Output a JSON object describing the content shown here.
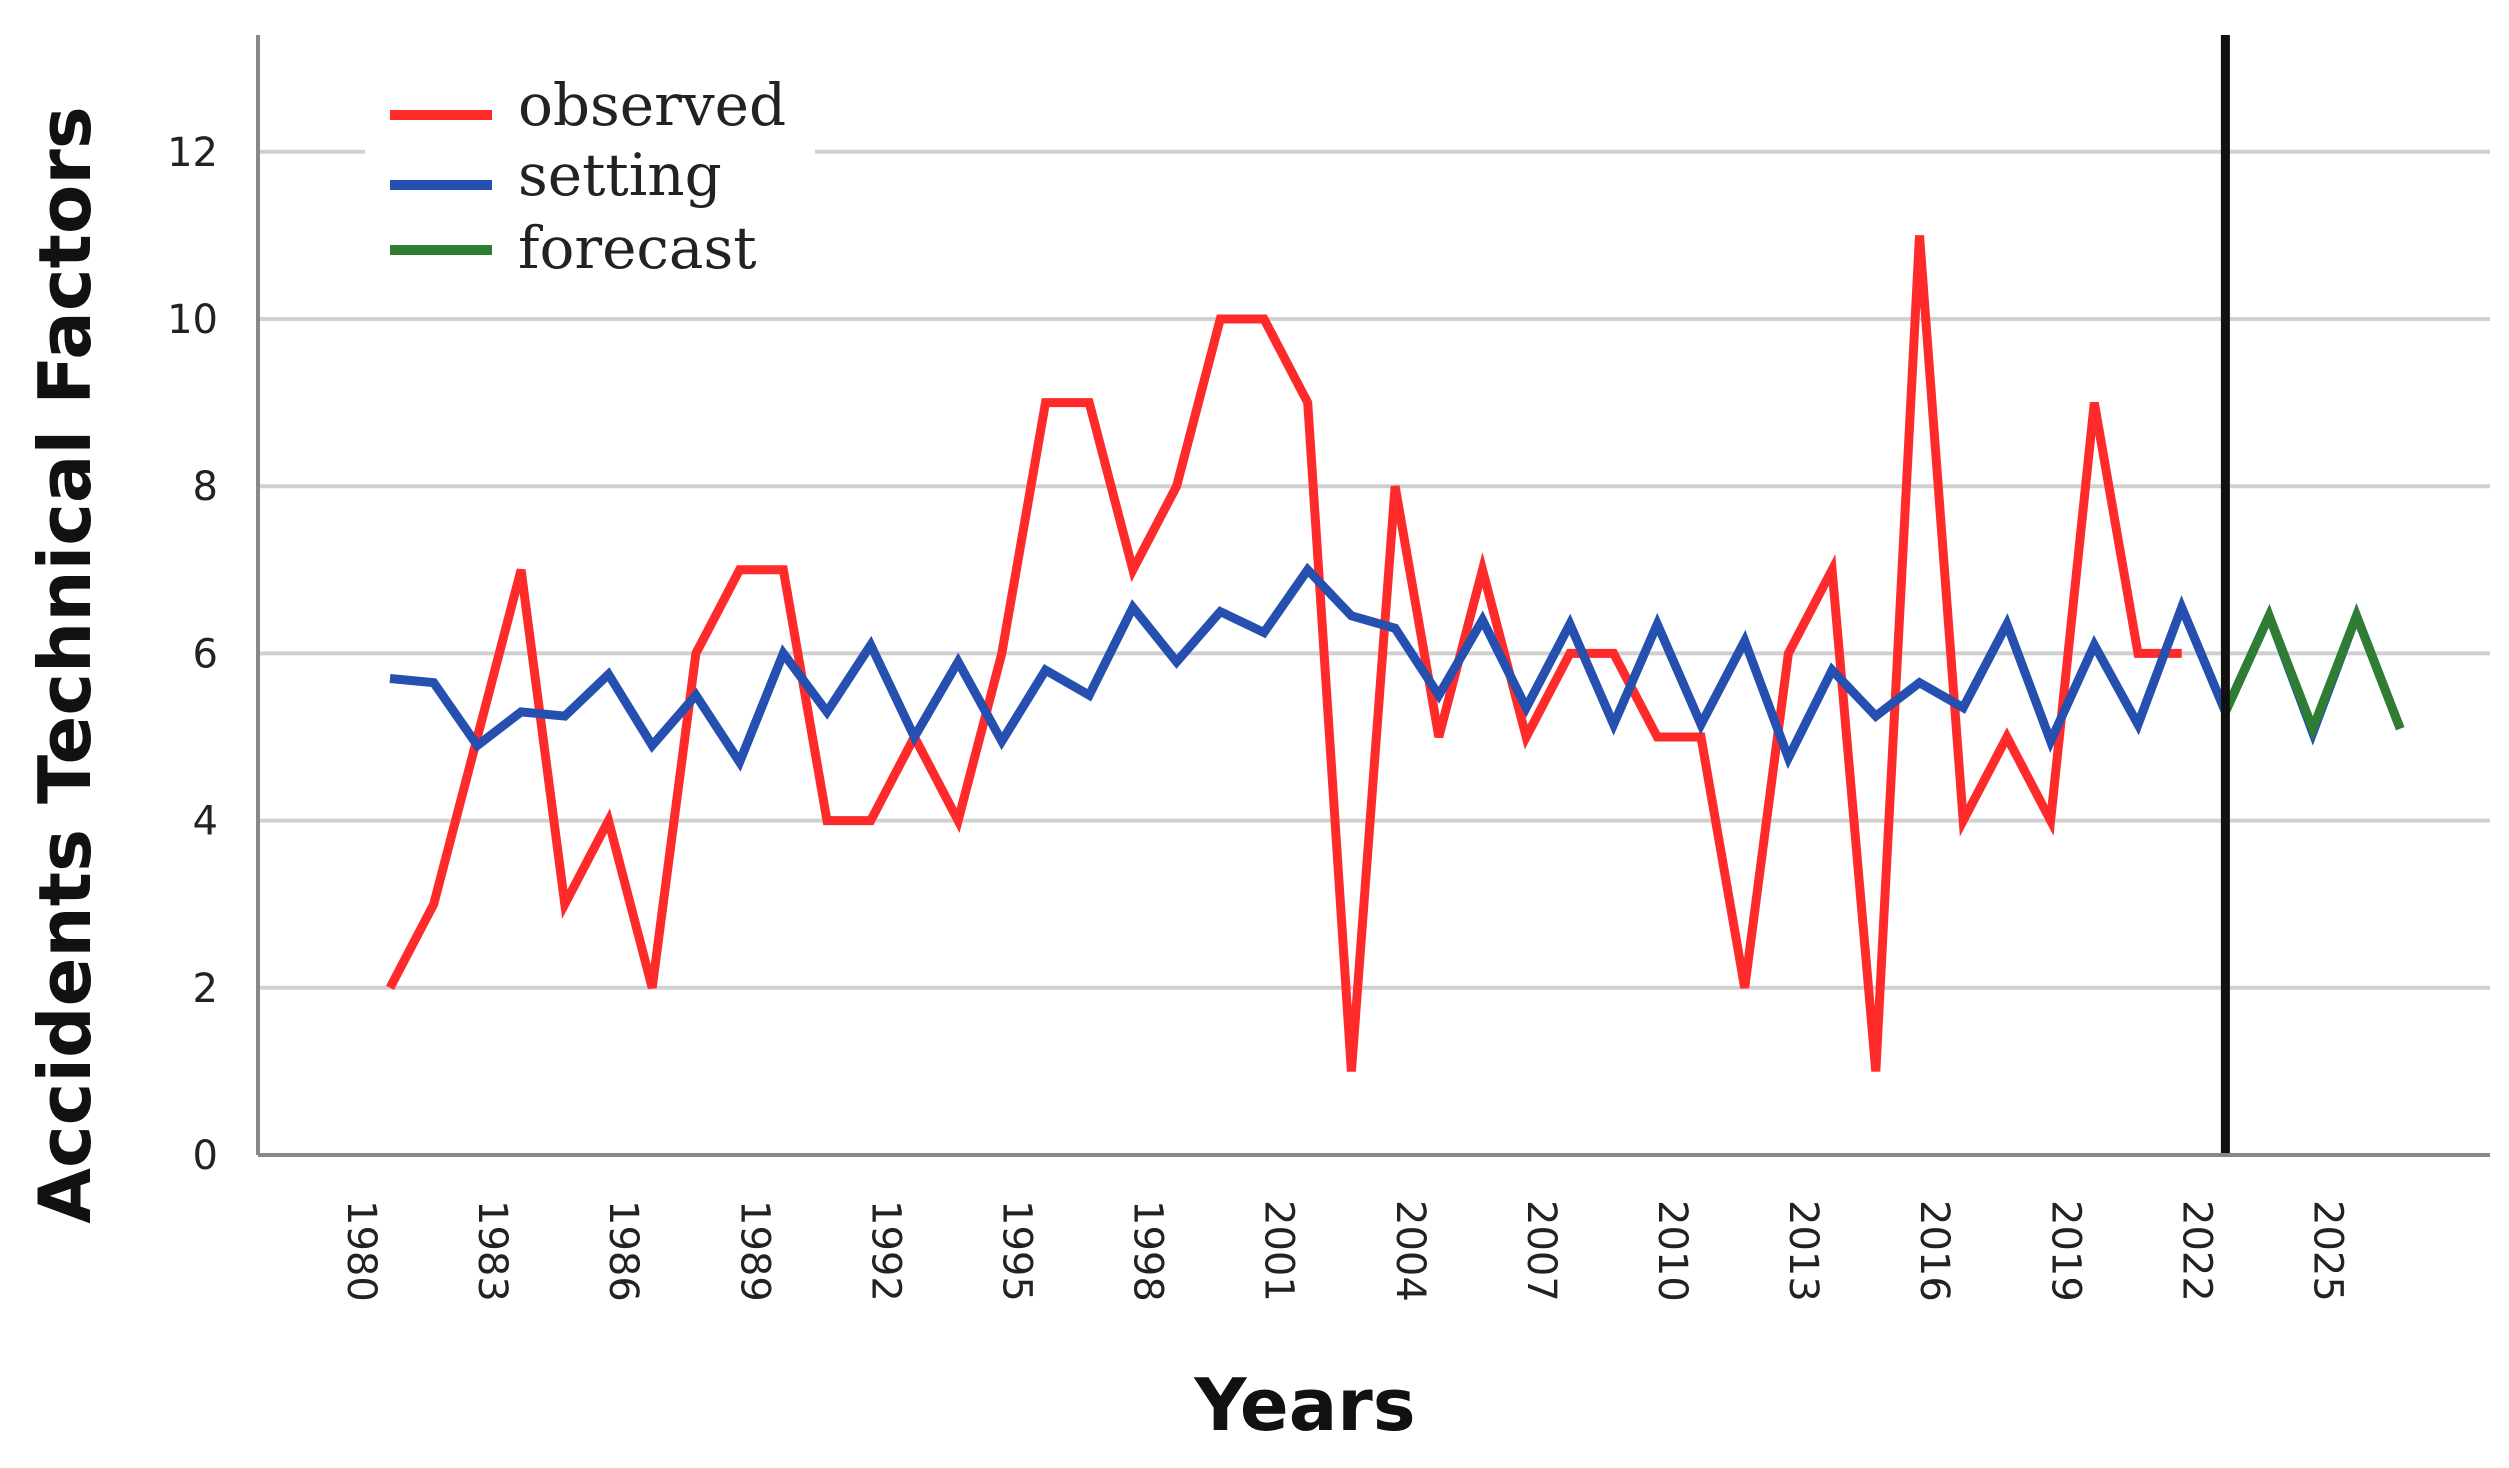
{
  "chart_data": {
    "type": "line",
    "title": "",
    "xlabel": "Years",
    "ylabel": "Accidents Technical Factors",
    "ylim": [
      0,
      13
    ],
    "yticks": [
      0,
      2,
      4,
      6,
      8,
      10,
      12
    ],
    "xlim": [
      1979,
      2028
    ],
    "xticks": [
      "1980",
      "1983",
      "1986",
      "1989",
      "1992",
      "1995",
      "1998",
      "2001",
      "2004",
      "2007",
      "2010",
      "2013",
      "2016",
      "2019",
      "2022",
      "2025"
    ],
    "grid": true,
    "legend_position": "top-left",
    "forecast_start": 2022,
    "series": [
      {
        "name": "observed",
        "color": "#ff2a2a",
        "x": [
          1980,
          1981,
          1982,
          1983,
          1984,
          1985,
          1986,
          1987,
          1988,
          1989,
          1990,
          1991,
          1992,
          1993,
          1994,
          1995,
          1996,
          1997,
          1998,
          1999,
          2000,
          2001,
          2002,
          2003,
          2004,
          2005,
          2006,
          2007,
          2008,
          2009,
          2010,
          2011,
          2012,
          2013,
          2014,
          2015,
          2016,
          2017,
          2018,
          2019,
          2020,
          2021
        ],
        "values": [
          2,
          3,
          5,
          7,
          3,
          4,
          2,
          6,
          7,
          7,
          4,
          4,
          5,
          4,
          6,
          9,
          9,
          7,
          8,
          10,
          10,
          9,
          1,
          8,
          5,
          7,
          5,
          6,
          6,
          5,
          5,
          2,
          6,
          7,
          1,
          11,
          4,
          5,
          4,
          9,
          6,
          6
        ]
      },
      {
        "name": "setting",
        "color": "#2550b0",
        "x": [
          1980,
          1981,
          1982,
          1983,
          1984,
          1985,
          1986,
          1987,
          1988,
          1989,
          1990,
          1991,
          1992,
          1993,
          1994,
          1995,
          1996,
          1997,
          1998,
          1999,
          2000,
          2001,
          2002,
          2003,
          2004,
          2005,
          2006,
          2007,
          2008,
          2009,
          2010,
          2011,
          2012,
          2013,
          2014,
          2015,
          2016,
          2017,
          2018,
          2019,
          2020,
          2021,
          2022,
          2023,
          2024,
          2025,
          2026
        ],
        "values": [
          5.7,
          5.65,
          4.9,
          5.3,
          5.25,
          5.75,
          4.9,
          5.5,
          4.7,
          6.0,
          5.3,
          6.1,
          5.0,
          5.9,
          4.95,
          5.8,
          5.5,
          6.55,
          5.9,
          6.5,
          6.25,
          7.0,
          6.45,
          6.3,
          5.5,
          6.4,
          5.35,
          6.35,
          5.15,
          6.35,
          5.15,
          6.15,
          4.75,
          5.8,
          5.25,
          5.65,
          5.35,
          6.35,
          4.95,
          6.1,
          5.15,
          6.55,
          5.3,
          6.45,
          5.05,
          6.45,
          5.1
        ]
      },
      {
        "name": "forecast",
        "color": "#2e7d32",
        "x": [
          2022,
          2023,
          2024,
          2025,
          2026
        ],
        "values": [
          5.3,
          6.45,
          5.1,
          6.45,
          5.1
        ]
      }
    ]
  }
}
